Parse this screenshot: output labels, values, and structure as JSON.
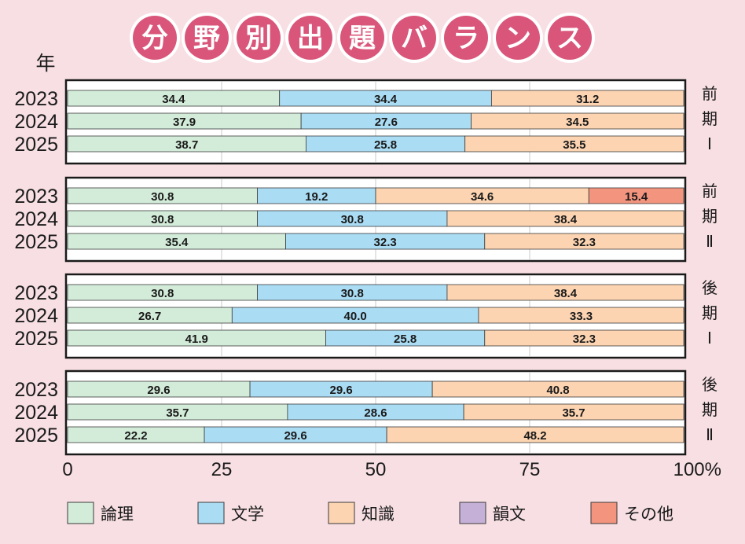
{
  "title_chars": [
    "分",
    "野",
    "別",
    "出",
    "題",
    "バ",
    "ラ",
    "ン",
    "ス"
  ],
  "colors": {
    "background": "#f7dfe3",
    "title_circle": "#d9567a",
    "論理": "#d3ecd9",
    "文学": "#aadcf4",
    "知識": "#fcd4b1",
    "韻文": "#c5b1d8",
    "その他": "#f3947e"
  },
  "chart_data": {
    "type": "bar",
    "orientation": "horizontal",
    "stacked": true,
    "title": "分野別出題バランス",
    "ylabel": "年",
    "xlim": [
      0,
      100
    ],
    "x_ticks": [
      "0",
      "25",
      "50",
      "75",
      "100%"
    ],
    "legend": [
      "論理",
      "文学",
      "知識",
      "韻文",
      "その他"
    ],
    "legend_position": "bottom",
    "grid": true,
    "groups": [
      {
        "label": [
          "前",
          "期",
          "Ⅰ"
        ],
        "rows": [
          {
            "year": "2023",
            "segments": [
              [
                "論理",
                34.4
              ],
              [
                "文学",
                34.4
              ],
              [
                "知識",
                31.2
              ]
            ]
          },
          {
            "year": "2024",
            "segments": [
              [
                "論理",
                37.9
              ],
              [
                "文学",
                27.6
              ],
              [
                "知識",
                34.5
              ]
            ]
          },
          {
            "year": "2025",
            "segments": [
              [
                "論理",
                38.7
              ],
              [
                "文学",
                25.8
              ],
              [
                "知識",
                35.5
              ]
            ]
          }
        ]
      },
      {
        "label": [
          "前",
          "期",
          "Ⅱ"
        ],
        "rows": [
          {
            "year": "2023",
            "segments": [
              [
                "論理",
                30.8
              ],
              [
                "文学",
                19.2
              ],
              [
                "知識",
                34.6
              ],
              [
                "その他",
                15.4
              ]
            ]
          },
          {
            "year": "2024",
            "segments": [
              [
                "論理",
                30.8
              ],
              [
                "文学",
                30.8
              ],
              [
                "知識",
                38.4
              ]
            ]
          },
          {
            "year": "2025",
            "segments": [
              [
                "論理",
                35.4
              ],
              [
                "文学",
                32.3
              ],
              [
                "知識",
                32.3
              ]
            ]
          }
        ]
      },
      {
        "label": [
          "後",
          "期",
          "Ⅰ"
        ],
        "rows": [
          {
            "year": "2023",
            "segments": [
              [
                "論理",
                30.8
              ],
              [
                "文学",
                30.8
              ],
              [
                "知識",
                38.4
              ]
            ]
          },
          {
            "year": "2024",
            "segments": [
              [
                "論理",
                26.7
              ],
              [
                "文学",
                40.0
              ],
              [
                "知識",
                33.3
              ]
            ]
          },
          {
            "year": "2025",
            "segments": [
              [
                "論理",
                41.9
              ],
              [
                "文学",
                25.8
              ],
              [
                "知識",
                32.3
              ]
            ]
          }
        ]
      },
      {
        "label": [
          "後",
          "期",
          "Ⅱ"
        ],
        "rows": [
          {
            "year": "2023",
            "segments": [
              [
                "論理",
                29.6
              ],
              [
                "文学",
                29.6
              ],
              [
                "知識",
                40.8
              ]
            ]
          },
          {
            "year": "2024",
            "segments": [
              [
                "論理",
                35.7
              ],
              [
                "文学",
                28.6
              ],
              [
                "知識",
                35.7
              ]
            ]
          },
          {
            "year": "2025",
            "segments": [
              [
                "論理",
                22.2
              ],
              [
                "文学",
                29.6
              ],
              [
                "知識",
                48.2
              ]
            ]
          }
        ]
      }
    ]
  }
}
